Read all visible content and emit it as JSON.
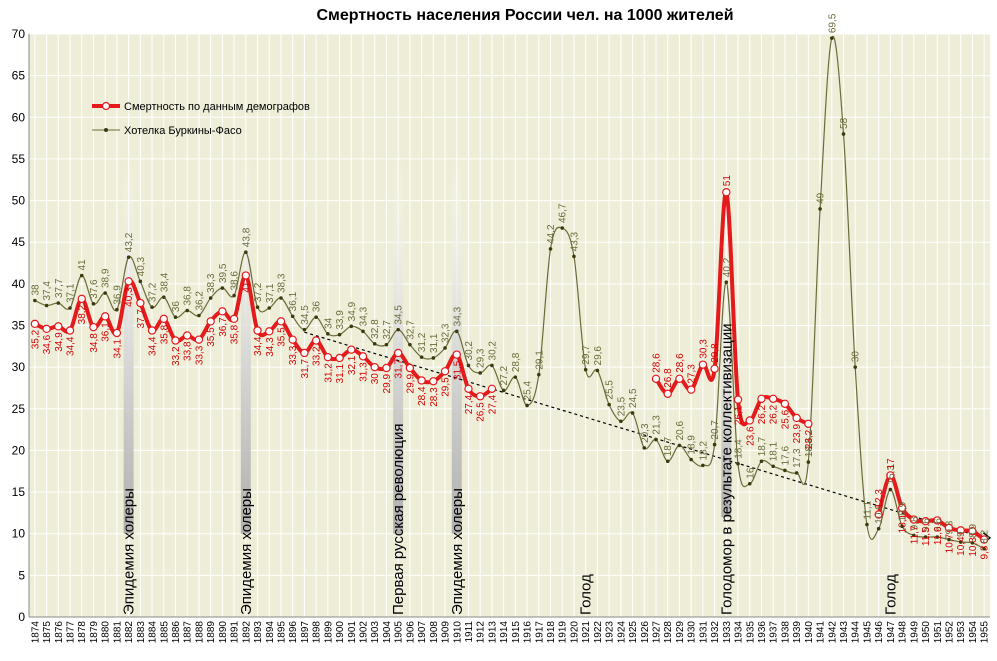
{
  "colors": {
    "plot_bg": "#eeeed8",
    "grid": "#ffffff",
    "red": "#e41a1c",
    "olive": "#6b6b3a",
    "trend": "#000000"
  },
  "chart_data": {
    "type": "line",
    "title": "Смертность населения России чел. на 1000 жителей",
    "ylim": [
      0,
      70
    ],
    "yticks": [
      0,
      5,
      10,
      15,
      20,
      25,
      30,
      35,
      40,
      45,
      50,
      55,
      60,
      65,
      70
    ],
    "x": [
      1874,
      1875,
      1876,
      1877,
      1878,
      1879,
      1880,
      1881,
      1882,
      1883,
      1884,
      1885,
      1886,
      1887,
      1888,
      1889,
      1890,
      1891,
      1892,
      1893,
      1894,
      1895,
      1896,
      1897,
      1898,
      1899,
      1900,
      1901,
      1902,
      1903,
      1904,
      1905,
      1906,
      1907,
      1908,
      1909,
      1910,
      1911,
      1912,
      1913,
      1914,
      1915,
      1916,
      1917,
      1918,
      1919,
      1920,
      1921,
      1922,
      1923,
      1924,
      1925,
      1926,
      1927,
      1928,
      1929,
      1930,
      1931,
      1932,
      1933,
      1934,
      1935,
      1936,
      1937,
      1938,
      1939,
      1940,
      1941,
      1942,
      1943,
      1944,
      1945,
      1946,
      1947,
      1948,
      1949,
      1950,
      1951,
      1952,
      1953,
      1954,
      1955
    ],
    "legend": [
      "Смертность по данным демографов",
      "Хотелка Буркины-Фасо"
    ],
    "series": [
      {
        "name": "Смертность по данным демографов",
        "points": [
          [
            1874,
            35.2
          ],
          [
            1875,
            34.6
          ],
          [
            1876,
            34.9
          ],
          [
            1877,
            34.4
          ],
          [
            1878,
            38.2
          ],
          [
            1879,
            34.8
          ],
          [
            1880,
            36.1
          ],
          [
            1881,
            34.1
          ],
          [
            1882,
            40.3
          ],
          [
            1883,
            37.7
          ],
          [
            1884,
            34.4
          ],
          [
            1885,
            35.8
          ],
          [
            1886,
            33.2
          ],
          [
            1887,
            33.8
          ],
          [
            1888,
            33.3
          ],
          [
            1889,
            35.5
          ],
          [
            1890,
            36.7
          ],
          [
            1891,
            35.8
          ],
          [
            1892,
            41
          ],
          [
            1893,
            34.4
          ],
          [
            1894,
            34.3
          ],
          [
            1895,
            35.5
          ],
          [
            1896,
            33.3
          ],
          [
            1897,
            31.7
          ],
          [
            1898,
            33.2
          ],
          [
            1899,
            31.2
          ],
          [
            1900,
            31.1
          ],
          [
            1901,
            32.1
          ],
          [
            1902,
            31.3
          ],
          [
            1903,
            30
          ],
          [
            1904,
            29.9
          ],
          [
            1905,
            31.7
          ],
          [
            1906,
            29.9
          ],
          [
            1907,
            28.4
          ],
          [
            1908,
            28.3
          ],
          [
            1909,
            29.5
          ],
          [
            1910,
            31.5
          ],
          [
            1911,
            27.4
          ],
          [
            1912,
            26.5
          ],
          [
            1913,
            27.4
          ]
        ],
        "points_b": [
          [
            1927,
            28.6
          ],
          [
            1928,
            26.8
          ],
          [
            1929,
            28.6
          ],
          [
            1930,
            27.3
          ],
          [
            1931,
            30.3
          ],
          [
            1932,
            29.8
          ],
          [
            1933,
            51
          ],
          [
            1934,
            26.1
          ],
          [
            1935,
            23.6
          ],
          [
            1936,
            26.2
          ],
          [
            1937,
            26.2
          ],
          [
            1938,
            25.6
          ],
          [
            1939,
            23.9
          ],
          [
            1940,
            23.2
          ]
        ],
        "points_c": [
          [
            1946,
            12.3
          ],
          [
            1947,
            17
          ],
          [
            1948,
            13.1
          ],
          [
            1949,
            11.7
          ],
          [
            1950,
            11.5
          ],
          [
            1951,
            11.6
          ],
          [
            1952,
            10.7
          ],
          [
            1953,
            10.4
          ],
          [
            1954,
            10.3
          ],
          [
            1955,
            9.3
          ]
        ]
      },
      {
        "name": "Хотелка Буркины-Фасо",
        "points": [
          [
            1874,
            38
          ],
          [
            1875,
            37.4
          ],
          [
            1876,
            37.7
          ],
          [
            1877,
            37.1
          ],
          [
            1878,
            41
          ],
          [
            1879,
            37.6
          ],
          [
            1880,
            38.9
          ],
          [
            1881,
            36.9
          ],
          [
            1882,
            43.2
          ],
          [
            1883,
            40.3
          ],
          [
            1884,
            37.2
          ],
          [
            1885,
            38.4
          ],
          [
            1886,
            36
          ],
          [
            1887,
            36.8
          ],
          [
            1888,
            36.2
          ],
          [
            1889,
            38.3
          ],
          [
            1890,
            39.5
          ],
          [
            1891,
            38.6
          ],
          [
            1892,
            43.8
          ],
          [
            1893,
            37.2
          ],
          [
            1894,
            37.1
          ],
          [
            1895,
            38.3
          ],
          [
            1896,
            36.1
          ],
          [
            1897,
            34.5
          ],
          [
            1898,
            36
          ],
          [
            1899,
            34
          ],
          [
            1900,
            33.9
          ],
          [
            1901,
            34.9
          ],
          [
            1902,
            34.3
          ],
          [
            1903,
            32.8
          ],
          [
            1904,
            32.7
          ],
          [
            1905,
            34.5
          ],
          [
            1906,
            32.7
          ],
          [
            1907,
            31.2
          ],
          [
            1908,
            31.1
          ],
          [
            1909,
            32.3
          ],
          [
            1910,
            34.3
          ],
          [
            1911,
            30.2
          ],
          [
            1912,
            29.3
          ],
          [
            1913,
            30.2
          ],
          [
            1914,
            27.2
          ],
          [
            1915,
            28.8
          ],
          [
            1916,
            25.4
          ],
          [
            1917,
            29.1
          ],
          [
            1918,
            44.2
          ],
          [
            1919,
            46.7
          ],
          [
            1920,
            43.3
          ],
          [
            1921,
            29.7
          ],
          [
            1922,
            29.6
          ],
          [
            1923,
            25.5
          ],
          [
            1924,
            23.5
          ],
          [
            1925,
            24.5
          ],
          [
            1926,
            20.3
          ],
          [
            1927,
            21.3
          ],
          [
            1928,
            18.7
          ],
          [
            1929,
            20.6
          ],
          [
            1930,
            18.9
          ],
          [
            1931,
            18.2
          ],
          [
            1932,
            20.7
          ],
          [
            1933,
            40.2
          ],
          [
            1934,
            18.4
          ],
          [
            1935,
            16
          ],
          [
            1936,
            18.7
          ],
          [
            1937,
            18.1
          ],
          [
            1938,
            17.6
          ],
          [
            1939,
            17.3
          ],
          [
            1940,
            18.6
          ],
          [
            1941,
            49
          ],
          [
            1942,
            69.5
          ],
          [
            1943,
            58
          ],
          [
            1944,
            30
          ],
          [
            1945,
            11.1
          ],
          [
            1946,
            10.6
          ],
          [
            1947,
            15.3
          ],
          [
            1948,
            10.9
          ],
          [
            1949,
            9.8
          ],
          [
            1950,
            9.6
          ],
          [
            1951,
            9.6
          ],
          [
            1952,
            9.3
          ],
          [
            1953,
            9
          ],
          [
            1954,
            8.9
          ],
          [
            1955,
            8.2
          ]
        ]
      }
    ],
    "trend": [
      [
        1897,
        34.2
      ],
      [
        1955,
        9.5
      ]
    ],
    "annotations": [
      {
        "x": 1882,
        "text": "Эпидемия холеры"
      },
      {
        "x": 1892,
        "text": "Эпидемия холеры"
      },
      {
        "x": 1905,
        "text": "Первая русская революция"
      },
      {
        "x": 1910,
        "text": "Эпидемия холеры"
      },
      {
        "x": 1921,
        "text": "Голод"
      },
      {
        "x": 1933,
        "text": "Голодомор в результате коллективизации"
      },
      {
        "x": 1947,
        "text": "Голод"
      }
    ]
  }
}
